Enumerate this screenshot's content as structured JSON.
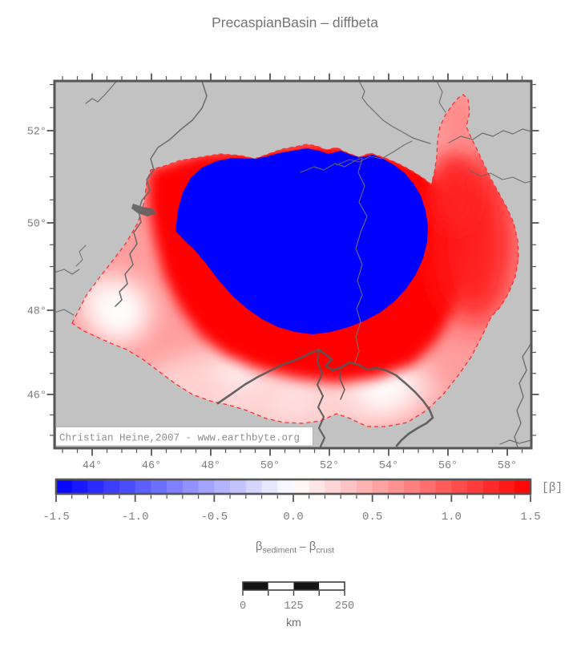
{
  "title": "PrecaspianBasin – diffbeta",
  "map": {
    "credit": "Christian Heine,2007 - www.earthbyte.org",
    "x_tick_labels": [
      "44°",
      "46°",
      "48°",
      "50°",
      "52°",
      "54°",
      "56°",
      "58°"
    ],
    "y_tick_labels": [
      "52°",
      "50°",
      "48°",
      "46°"
    ]
  },
  "colorbar": {
    "label": "[β]",
    "tick_labels": [
      "-1.5",
      "-1.0",
      "-0.5",
      "0.0",
      "0.5",
      "1.0",
      "1.5"
    ],
    "min": -1.5,
    "max": 1.5,
    "segments": 30,
    "colors": {
      "negative_end": "#0000ff",
      "zero": "#ffffff",
      "positive_end": "#ff0000"
    }
  },
  "beta_label": {
    "beta1": "β",
    "sub1": "sediment",
    "operator": " – ",
    "beta2": "β",
    "sub2": "crust"
  },
  "scalebar": {
    "tick_labels": [
      "0",
      "125",
      "250"
    ],
    "unit": "km"
  },
  "chart_data": {
    "type": "heatmap",
    "title": "PrecaspianBasin – diffbeta",
    "quantity": "β_sediment − β_crust",
    "region": {
      "lon_ticks_deg": [
        44,
        46,
        48,
        50,
        52,
        54,
        56,
        58
      ],
      "lat_ticks_deg": [
        46,
        48,
        50,
        52
      ]
    },
    "colorbar": {
      "min": -1.5,
      "max": 1.5,
      "step": 0.1,
      "major_ticks": [
        -1.5,
        -1.0,
        -0.5,
        0.0,
        0.5,
        1.0,
        1.5
      ],
      "label": "[β]",
      "colormap": "polar blue-white-red"
    },
    "features": [
      "large saturated blue negative anomaly (<= -1.5) filling basin center ~47-56E / 48-51.5N",
      "saturated red positive ring (~+1.5) surrounding the blue core",
      "values fade to white (~0) in the southwest corner near 45.5E/47.5N and south near 54E/46.5N",
      "red arm of the region extends northeast toward 57E/51.5N",
      "data region outlined with red dashed boundary on gray land background with gray rivers"
    ],
    "scalebar_km": [
      0,
      125,
      250
    ]
  }
}
